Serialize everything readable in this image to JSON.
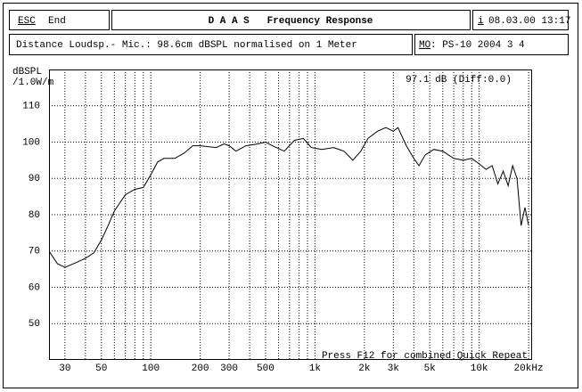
{
  "header": {
    "esc": "ESC",
    "end": "End",
    "title": "D A A S   Frequency Response",
    "info_icon": "i",
    "datetime": "08.03.00 13:17",
    "info": "Distance Loudsp.- Mic.: 98.6cm dBSPL normalised on 1 Meter",
    "model_label": "MO",
    "model": ": PS-10 2004 3 4"
  },
  "chart_data": {
    "type": "line",
    "y_label": [
      "dBSPL",
      "/1.0W/m"
    ],
    "annotation": "97.1 dB (Diff:0.0)",
    "footer": "Press F12 for combined Quick Repeat",
    "log_x": true,
    "grid": true,
    "color": "#000000",
    "xlim": [
      24,
      21000
    ],
    "ylim": [
      40,
      120
    ],
    "xticks": [
      30,
      50,
      100,
      200,
      300,
      500,
      {
        "value": 1000,
        "label": "1k"
      },
      {
        "value": 2000,
        "label": "2k"
      },
      {
        "value": 3000,
        "label": "3k"
      },
      {
        "value": 5000,
        "label": "5k"
      },
      {
        "value": 10000,
        "label": "10k"
      },
      {
        "value": 20000,
        "label": "20kHz"
      }
    ],
    "xgrid_minor": [
      40,
      60,
      70,
      80,
      90,
      400,
      600,
      700,
      800,
      900,
      4000,
      6000,
      7000,
      8000,
      9000
    ],
    "yticks": [
      50,
      60,
      70,
      80,
      90,
      100,
      110
    ],
    "x": [
      24,
      27,
      30,
      35,
      40,
      45,
      50,
      55,
      60,
      70,
      80,
      90,
      100,
      110,
      120,
      140,
      160,
      180,
      200,
      250,
      280,
      300,
      330,
      380,
      450,
      500,
      550,
      650,
      750,
      850,
      950,
      1100,
      1300,
      1500,
      1700,
      1900,
      2100,
      2400,
      2700,
      3000,
      3200,
      3600,
      4000,
      4300,
      4700,
      5300,
      6000,
      7000,
      8000,
      9000,
      10000,
      11000,
      12000,
      13000,
      14000,
      15000,
      16000,
      17000,
      18000,
      19000,
      20000
    ],
    "values": [
      70,
      66.5,
      65.5,
      66.8,
      68,
      69.5,
      73,
      77,
      81,
      85.5,
      87,
      87.5,
      91,
      94.5,
      95.5,
      95.5,
      97,
      99,
      99,
      98.5,
      99.5,
      99,
      97.5,
      99,
      99.5,
      100,
      99,
      97.5,
      100.5,
      101,
      98.5,
      98,
      98.5,
      97.5,
      95,
      97.5,
      101,
      103,
      104,
      103,
      104,
      99,
      95.5,
      93.5,
      96.5,
      98,
      97.5,
      95.5,
      95,
      95.5,
      94,
      92.5,
      93.5,
      88.5,
      92,
      88,
      93.5,
      90,
      77,
      82,
      77
    ]
  }
}
